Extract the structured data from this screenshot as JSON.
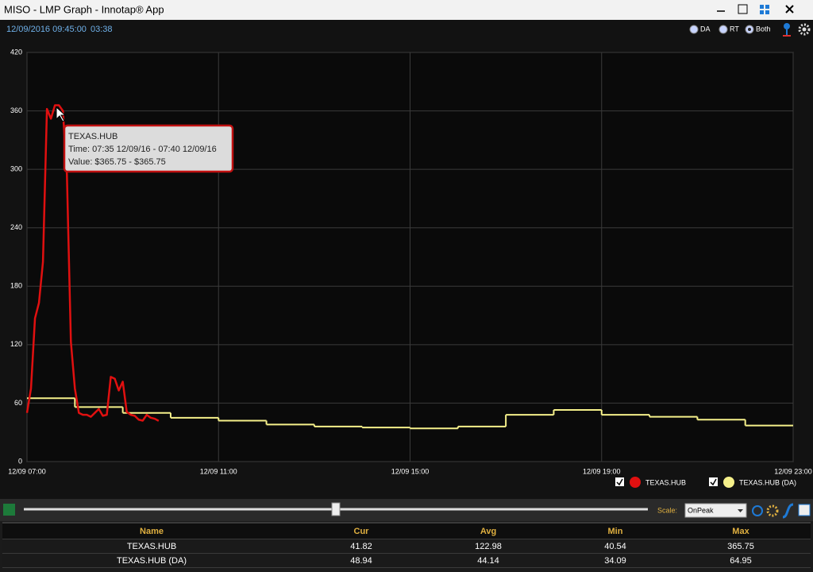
{
  "window": {
    "title": "MISO - LMP Graph - Innotap® App"
  },
  "status": {
    "timestamp": "12/09/2016 09:45:00",
    "elapsed": "03:38"
  },
  "modes": {
    "options": [
      "DA",
      "RT",
      "Both"
    ],
    "selected": 2
  },
  "chart_data": {
    "type": "line",
    "xlim": [
      420,
      1380
    ],
    "xticks": [
      {
        "value": 420,
        "label": "12/09 07:00"
      },
      {
        "value": 660,
        "label": "12/09 11:00"
      },
      {
        "value": 900,
        "label": "12/09 15:00"
      },
      {
        "value": 1140,
        "label": "12/09 19:00"
      },
      {
        "value": 1380,
        "label": "12/09 23:00"
      }
    ],
    "ylim": [
      0,
      420
    ],
    "yticks": [
      0,
      60,
      120,
      180,
      240,
      300,
      360,
      420
    ],
    "grid": true,
    "series": [
      {
        "name": "TEXAS.HUB",
        "color": "#e01010",
        "step": false,
        "x": [
          420,
          425,
          430,
          435,
          440,
          445,
          450,
          455,
          460,
          465,
          470,
          475,
          480,
          485,
          490,
          495,
          500,
          505,
          510,
          515,
          520,
          525,
          530,
          535,
          540,
          545,
          550,
          555,
          560,
          565,
          570,
          575,
          580,
          585
        ],
        "values": [
          50,
          75,
          147,
          163,
          205,
          362,
          352,
          365.75,
          365.75,
          360,
          295,
          123,
          75,
          50,
          48,
          48,
          46,
          50,
          54,
          47,
          48,
          87,
          85,
          73,
          82,
          51,
          48,
          47,
          43,
          42,
          48,
          45,
          44,
          41.82
        ]
      },
      {
        "name": "TEXAS.HUB (DA)",
        "color": "#f5f08a",
        "step": true,
        "x": [
          420,
          480,
          540,
          600,
          660,
          720,
          780,
          840,
          900,
          960,
          1020,
          1080,
          1140,
          1200,
          1260,
          1320
        ],
        "values": [
          65,
          56,
          50,
          45,
          42,
          38,
          36,
          35,
          34,
          36,
          48,
          53,
          48,
          46,
          43,
          37
        ]
      }
    ],
    "tooltip": [
      "TEXAS.HUB",
      "Time: 07:35 12/09/16 - 07:40 12/09/16",
      "Value: $365.75 - $365.75"
    ]
  },
  "controls": {
    "scale_label": "Scale:",
    "scale_value": "OnPeak"
  },
  "table": {
    "columns": [
      "Name",
      "Cur",
      "Avg",
      "Min",
      "Max"
    ],
    "rows": [
      [
        "TEXAS.HUB",
        41.82,
        122.98,
        40.54,
        365.75
      ],
      [
        "TEXAS.HUB (DA)",
        48.94,
        44.14,
        34.09,
        64.95
      ]
    ]
  }
}
